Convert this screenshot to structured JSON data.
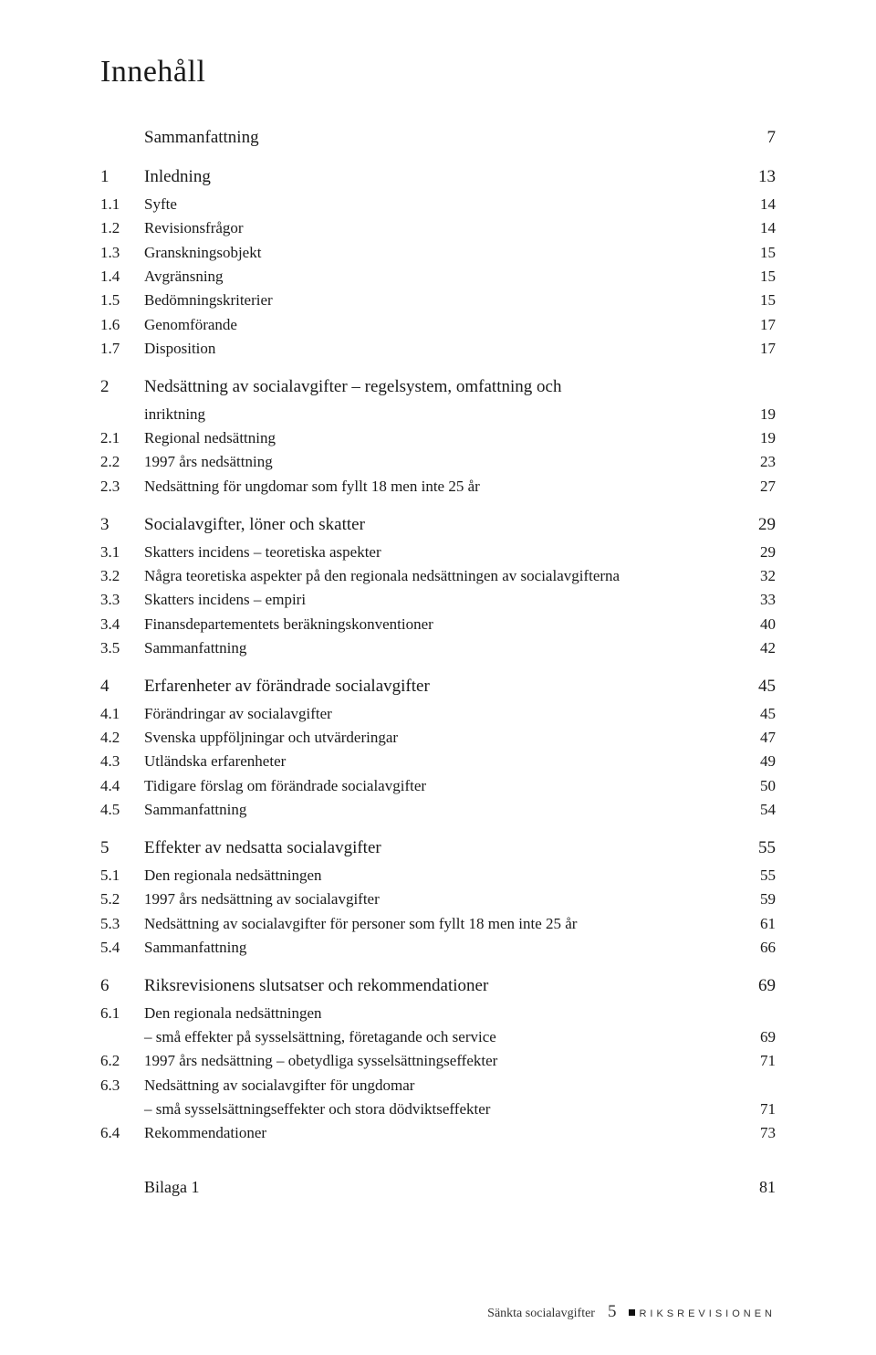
{
  "title": "Innehåll",
  "toc": [
    {
      "level": "top",
      "num": "",
      "label": "Sammanfattning",
      "page": "7"
    },
    {
      "level": "chapter",
      "num": "1",
      "label": "Inledning",
      "page": "13"
    },
    {
      "level": "sub",
      "num": "1.1",
      "label": "Syfte",
      "page": "14"
    },
    {
      "level": "sub",
      "num": "1.2",
      "label": "Revisionsfrågor",
      "page": "14"
    },
    {
      "level": "sub",
      "num": "1.3",
      "label": "Granskningsobjekt",
      "page": "15"
    },
    {
      "level": "sub",
      "num": "1.4",
      "label": "Avgränsning",
      "page": "15"
    },
    {
      "level": "sub",
      "num": "1.5",
      "label": "Bedömningskriterier",
      "page": "15"
    },
    {
      "level": "sub",
      "num": "1.6",
      "label": "Genomförande",
      "page": "17"
    },
    {
      "level": "sub",
      "num": "1.7",
      "label": "Disposition",
      "page": "17"
    },
    {
      "level": "chapter",
      "num": "2",
      "label": "Nedsättning av socialavgifter – regelsystem, omfattning och",
      "page": ""
    },
    {
      "level": "subcont",
      "num": "",
      "label": "inriktning",
      "page": "19"
    },
    {
      "level": "sub",
      "num": "2.1",
      "label": "Regional nedsättning",
      "page": "19"
    },
    {
      "level": "sub",
      "num": "2.2",
      "label": "1997 års nedsättning",
      "page": "23"
    },
    {
      "level": "sub",
      "num": "2.3",
      "label": "Nedsättning för ungdomar som fyllt 18 men inte 25 år",
      "page": "27"
    },
    {
      "level": "chapter",
      "num": "3",
      "label": "Socialavgifter, löner och skatter",
      "page": "29"
    },
    {
      "level": "sub",
      "num": "3.1",
      "label": "Skatters incidens – teoretiska aspekter",
      "page": "29"
    },
    {
      "level": "sub",
      "num": "3.2",
      "label": "Några teoretiska aspekter på den regionala nedsättningen av socialavgifterna",
      "page": "32"
    },
    {
      "level": "sub",
      "num": "3.3",
      "label": "Skatters incidens – empiri",
      "page": "33"
    },
    {
      "level": "sub",
      "num": "3.4",
      "label": "Finansdepartementets beräkningskonventioner",
      "page": "40"
    },
    {
      "level": "sub",
      "num": "3.5",
      "label": "Sammanfattning",
      "page": "42"
    },
    {
      "level": "chapter",
      "num": "4",
      "label": "Erfarenheter av förändrade socialavgifter",
      "page": "45"
    },
    {
      "level": "sub",
      "num": "4.1",
      "label": "Förändringar av socialavgifter",
      "page": "45"
    },
    {
      "level": "sub",
      "num": "4.2",
      "label": "Svenska uppföljningar och utvärderingar",
      "page": "47"
    },
    {
      "level": "sub",
      "num": "4.3",
      "label": "Utländska erfarenheter",
      "page": "49"
    },
    {
      "level": "sub",
      "num": "4.4",
      "label": "Tidigare förslag om förändrade socialavgifter",
      "page": "50"
    },
    {
      "level": "sub",
      "num": "4.5",
      "label": "Sammanfattning",
      "page": "54"
    },
    {
      "level": "chapter",
      "num": "5",
      "label": "Effekter av nedsatta socialavgifter",
      "page": "55"
    },
    {
      "level": "sub",
      "num": "5.1",
      "label": "Den regionala nedsättningen",
      "page": "55"
    },
    {
      "level": "sub",
      "num": "5.2",
      "label": "1997 års nedsättning av socialavgifter",
      "page": "59"
    },
    {
      "level": "sub",
      "num": "5.3",
      "label": "Nedsättning av socialavgifter för personer som fyllt 18 men inte 25 år",
      "page": "61"
    },
    {
      "level": "sub",
      "num": "5.4",
      "label": "Sammanfattning",
      "page": "66"
    },
    {
      "level": "chapter",
      "num": "6",
      "label": "Riksrevisionens slutsatser och rekommendationer",
      "page": "69"
    },
    {
      "level": "sub",
      "num": "6.1",
      "label": "Den regionala nedsättningen",
      "page": ""
    },
    {
      "level": "subcont",
      "num": "",
      "label": "– små effekter på sysselsättning, företagande och service",
      "page": "69"
    },
    {
      "level": "sub",
      "num": "6.2",
      "label": "1997 års nedsättning – obetydliga sysselsättningseffekter",
      "page": "71"
    },
    {
      "level": "sub",
      "num": "6.3",
      "label": "Nedsättning av socialavgifter för ungdomar",
      "page": ""
    },
    {
      "level": "subcont",
      "num": "",
      "label": "– små sysselsättningseffekter och stora dödviktseffekter",
      "page": "71"
    },
    {
      "level": "sub",
      "num": "6.4",
      "label": "Rekommendationer",
      "page": "73"
    },
    {
      "level": "bilaga",
      "num": "",
      "label": "Bilaga 1",
      "page": "81"
    }
  ],
  "footer": {
    "title": "Sänkta socialavgifter",
    "page": "5",
    "brand": "riksrevisionen"
  }
}
